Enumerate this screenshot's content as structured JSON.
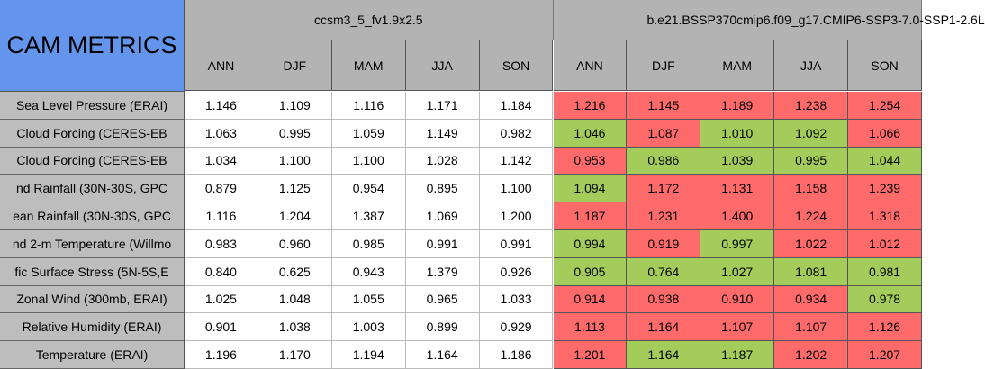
{
  "title": "CAM METRICS",
  "groups": [
    "ccsm3_5_fv1.9x2.5",
    "b.e21.BSSP370cmip6.f09_g17.CMIP6-SSP3-7.0-SSP1-2.6L"
  ],
  "seasons": [
    "ANN",
    "DJF",
    "MAM",
    "JJA",
    "SON"
  ],
  "colors": {
    "better": "#a3cc5a",
    "worse": "#ff6b6b",
    "header": "#b3b3b3",
    "title": "#6495ed"
  },
  "rows": [
    {
      "label": "Sea Level Pressure (ERAI)",
      "base": [
        "1.146",
        "1.109",
        "1.116",
        "1.171",
        "1.184"
      ],
      "test": [
        "1.216",
        "1.145",
        "1.189",
        "1.238",
        "1.254"
      ],
      "status": [
        "worse",
        "worse",
        "worse",
        "worse",
        "worse"
      ]
    },
    {
      "label": "Cloud Forcing (CERES-EB",
      "base": [
        "1.063",
        "0.995",
        "1.059",
        "1.149",
        "0.982"
      ],
      "test": [
        "1.046",
        "1.087",
        "1.010",
        "1.092",
        "1.066"
      ],
      "status": [
        "better",
        "worse",
        "better",
        "better",
        "worse"
      ]
    },
    {
      "label": "Cloud Forcing (CERES-EB",
      "base": [
        "1.034",
        "1.100",
        "1.100",
        "1.028",
        "1.142"
      ],
      "test": [
        "0.953",
        "0.986",
        "1.039",
        "0.995",
        "1.044"
      ],
      "status": [
        "worse",
        "better",
        "better",
        "better",
        "better"
      ]
    },
    {
      "label": "nd Rainfall (30N-30S, GPC",
      "base": [
        "0.879",
        "1.125",
        "0.954",
        "0.895",
        "1.100"
      ],
      "test": [
        "1.094",
        "1.172",
        "1.131",
        "1.158",
        "1.239"
      ],
      "status": [
        "better",
        "worse",
        "worse",
        "worse",
        "worse"
      ]
    },
    {
      "label": "ean Rainfall (30N-30S, GPC",
      "base": [
        "1.116",
        "1.204",
        "1.387",
        "1.069",
        "1.200"
      ],
      "test": [
        "1.187",
        "1.231",
        "1.400",
        "1.224",
        "1.318"
      ],
      "status": [
        "worse",
        "worse",
        "worse",
        "worse",
        "worse"
      ]
    },
    {
      "label": "nd 2-m Temperature (Willmo",
      "base": [
        "0.983",
        "0.960",
        "0.985",
        "0.991",
        "0.991"
      ],
      "test": [
        "0.994",
        "0.919",
        "0.997",
        "1.022",
        "1.012"
      ],
      "status": [
        "better",
        "worse",
        "better",
        "worse",
        "worse"
      ]
    },
    {
      "label": "fic Surface Stress (5N-5S,E",
      "base": [
        "0.840",
        "0.625",
        "0.943",
        "1.379",
        "0.926"
      ],
      "test": [
        "0.905",
        "0.764",
        "1.027",
        "1.081",
        "0.981"
      ],
      "status": [
        "better",
        "better",
        "better",
        "better",
        "better"
      ]
    },
    {
      "label": "Zonal Wind (300mb, ERAI)",
      "base": [
        "1.025",
        "1.048",
        "1.055",
        "0.965",
        "1.033"
      ],
      "test": [
        "0.914",
        "0.938",
        "0.910",
        "0.934",
        "0.978"
      ],
      "status": [
        "worse",
        "worse",
        "worse",
        "worse",
        "better"
      ]
    },
    {
      "label": "Relative Humidity (ERAI)",
      "base": [
        "0.901",
        "1.038",
        "1.003",
        "0.899",
        "0.929"
      ],
      "test": [
        "1.113",
        "1.164",
        "1.107",
        "1.107",
        "1.126"
      ],
      "status": [
        "worse",
        "worse",
        "worse",
        "worse",
        "worse"
      ]
    },
    {
      "label": "Temperature (ERAI)",
      "base": [
        "1.196",
        "1.170",
        "1.194",
        "1.164",
        "1.186"
      ],
      "test": [
        "1.201",
        "1.164",
        "1.187",
        "1.202",
        "1.207"
      ],
      "status": [
        "worse",
        "better",
        "better",
        "worse",
        "worse"
      ]
    }
  ]
}
